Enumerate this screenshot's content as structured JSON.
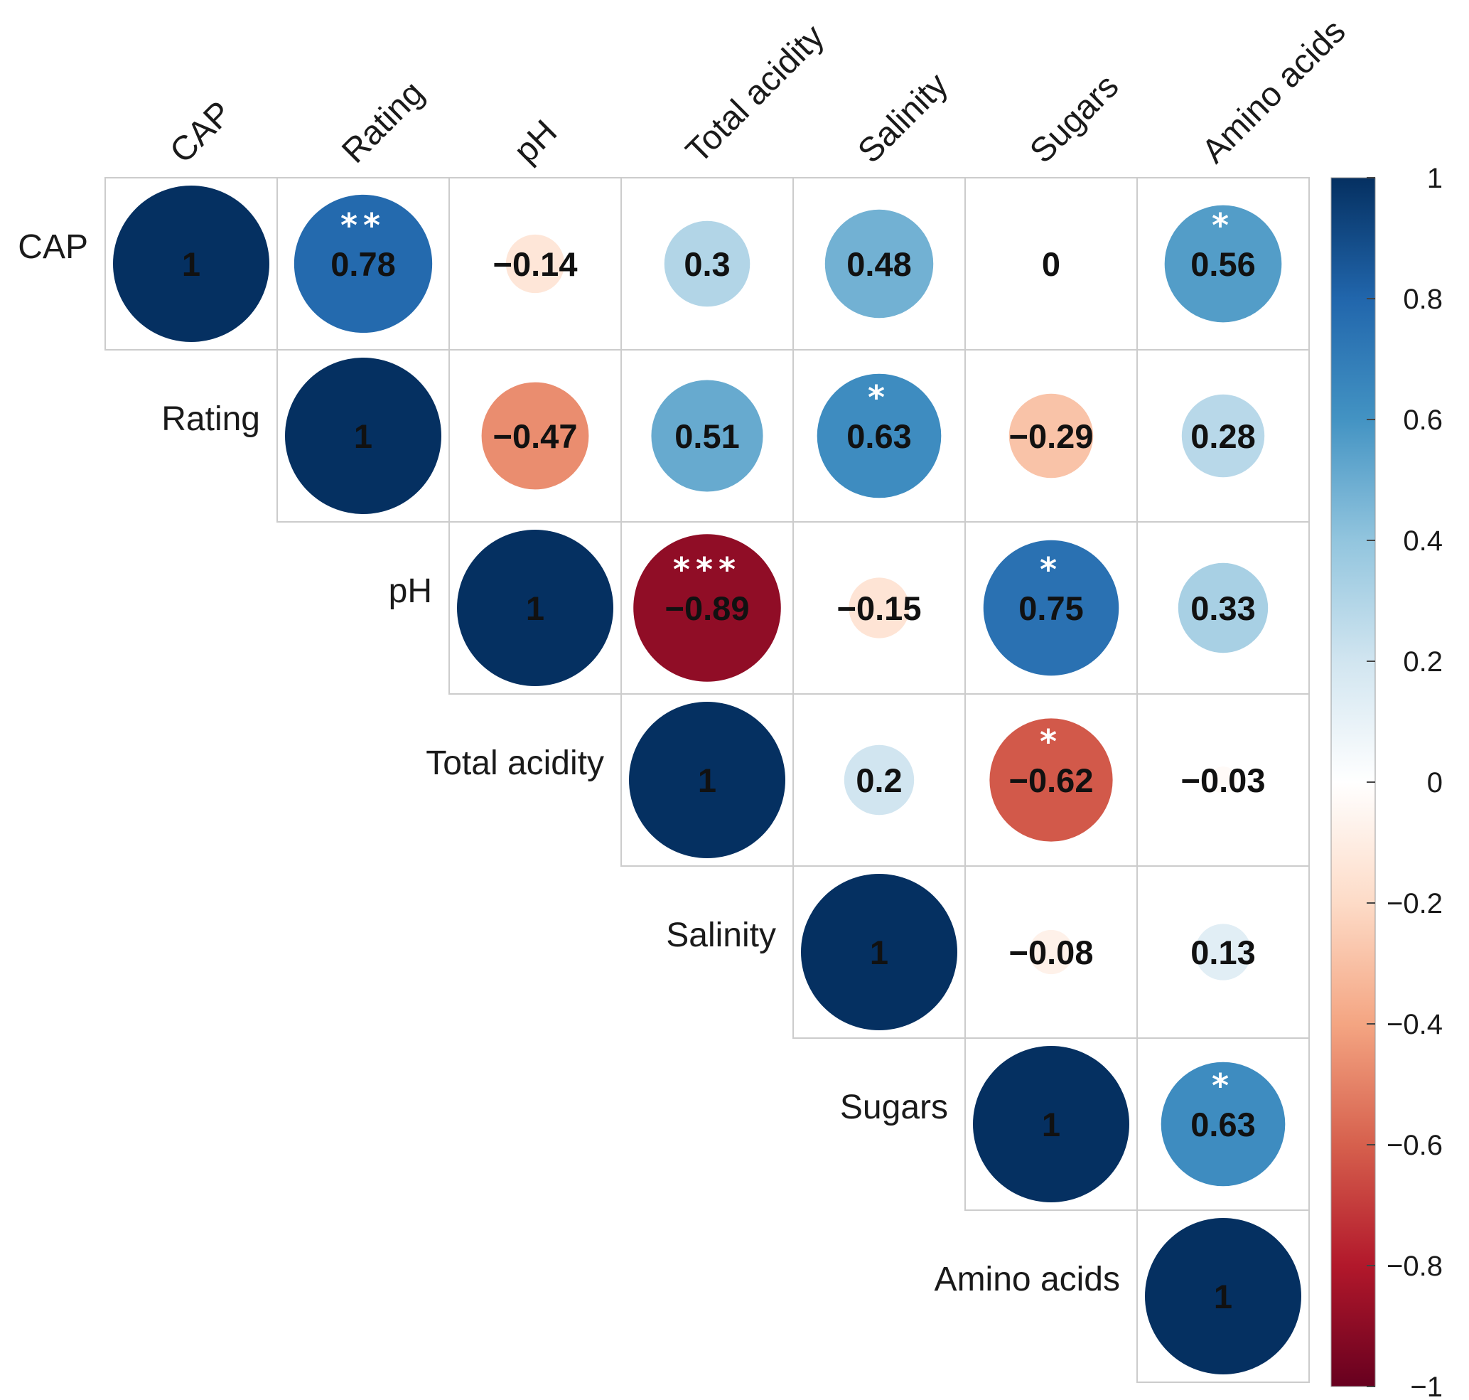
{
  "chart_data": {
    "type": "correlation-matrix",
    "shape": "circle",
    "layout": "upper-triangle",
    "variables": [
      "CAP",
      "Rating",
      "pH",
      "Total acidity",
      "Salinity",
      "Sugars",
      "Amino acids"
    ],
    "cells": [
      {
        "row": 0,
        "col": 0,
        "value": 1,
        "label": "1",
        "sig": ""
      },
      {
        "row": 0,
        "col": 1,
        "value": 0.78,
        "label": "0.78",
        "sig": "**"
      },
      {
        "row": 0,
        "col": 2,
        "value": -0.14,
        "label": "−0.14",
        "sig": ""
      },
      {
        "row": 0,
        "col": 3,
        "value": 0.3,
        "label": "0.3",
        "sig": ""
      },
      {
        "row": 0,
        "col": 4,
        "value": 0.48,
        "label": "0.48",
        "sig": ""
      },
      {
        "row": 0,
        "col": 5,
        "value": 0,
        "label": "0",
        "sig": ""
      },
      {
        "row": 0,
        "col": 6,
        "value": 0.56,
        "label": "0.56",
        "sig": "*"
      },
      {
        "row": 1,
        "col": 1,
        "value": 1,
        "label": "1",
        "sig": ""
      },
      {
        "row": 1,
        "col": 2,
        "value": -0.47,
        "label": "−0.47",
        "sig": ""
      },
      {
        "row": 1,
        "col": 3,
        "value": 0.51,
        "label": "0.51",
        "sig": ""
      },
      {
        "row": 1,
        "col": 4,
        "value": 0.63,
        "label": "0.63",
        "sig": "*"
      },
      {
        "row": 1,
        "col": 5,
        "value": -0.29,
        "label": "−0.29",
        "sig": ""
      },
      {
        "row": 1,
        "col": 6,
        "value": 0.28,
        "label": "0.28",
        "sig": ""
      },
      {
        "row": 2,
        "col": 2,
        "value": 1,
        "label": "1",
        "sig": ""
      },
      {
        "row": 2,
        "col": 3,
        "value": -0.89,
        "label": "−0.89",
        "sig": "***"
      },
      {
        "row": 2,
        "col": 4,
        "value": -0.15,
        "label": "−0.15",
        "sig": ""
      },
      {
        "row": 2,
        "col": 5,
        "value": 0.75,
        "label": "0.75",
        "sig": "*"
      },
      {
        "row": 2,
        "col": 6,
        "value": 0.33,
        "label": "0.33",
        "sig": ""
      },
      {
        "row": 3,
        "col": 3,
        "value": 1,
        "label": "1",
        "sig": ""
      },
      {
        "row": 3,
        "col": 4,
        "value": 0.2,
        "label": "0.2",
        "sig": ""
      },
      {
        "row": 3,
        "col": 5,
        "value": -0.62,
        "label": "−0.62",
        "sig": "*"
      },
      {
        "row": 3,
        "col": 6,
        "value": -0.03,
        "label": "−0.03",
        "sig": ""
      },
      {
        "row": 4,
        "col": 4,
        "value": 1,
        "label": "1",
        "sig": ""
      },
      {
        "row": 4,
        "col": 5,
        "value": -0.08,
        "label": "−0.08",
        "sig": ""
      },
      {
        "row": 4,
        "col": 6,
        "value": 0.13,
        "label": "0.13",
        "sig": ""
      },
      {
        "row": 5,
        "col": 5,
        "value": 1,
        "label": "1",
        "sig": ""
      },
      {
        "row": 5,
        "col": 6,
        "value": 0.63,
        "label": "0.63",
        "sig": "*"
      },
      {
        "row": 6,
        "col": 6,
        "value": 1,
        "label": "1",
        "sig": ""
      }
    ],
    "colorbar": {
      "range": [
        -1,
        1
      ],
      "ticks": [
        {
          "value": 1,
          "label": "1"
        },
        {
          "value": 0.8,
          "label": "0.8"
        },
        {
          "value": 0.6,
          "label": "0.6"
        },
        {
          "value": 0.4,
          "label": "0.4"
        },
        {
          "value": 0.2,
          "label": "0.2"
        },
        {
          "value": 0,
          "label": "0"
        },
        {
          "value": -0.2,
          "label": "−0.2"
        },
        {
          "value": -0.4,
          "label": "−0.4"
        },
        {
          "value": -0.6,
          "label": "−0.6"
        },
        {
          "value": -0.8,
          "label": "−0.8"
        },
        {
          "value": -1,
          "label": "−1"
        }
      ],
      "colors": [
        "#67001f",
        "#b2182b",
        "#d6604d",
        "#f4a582",
        "#fddbc7",
        "#ffffff",
        "#d1e5f0",
        "#92c5de",
        "#4393c3",
        "#2166ac",
        "#053061"
      ]
    }
  }
}
